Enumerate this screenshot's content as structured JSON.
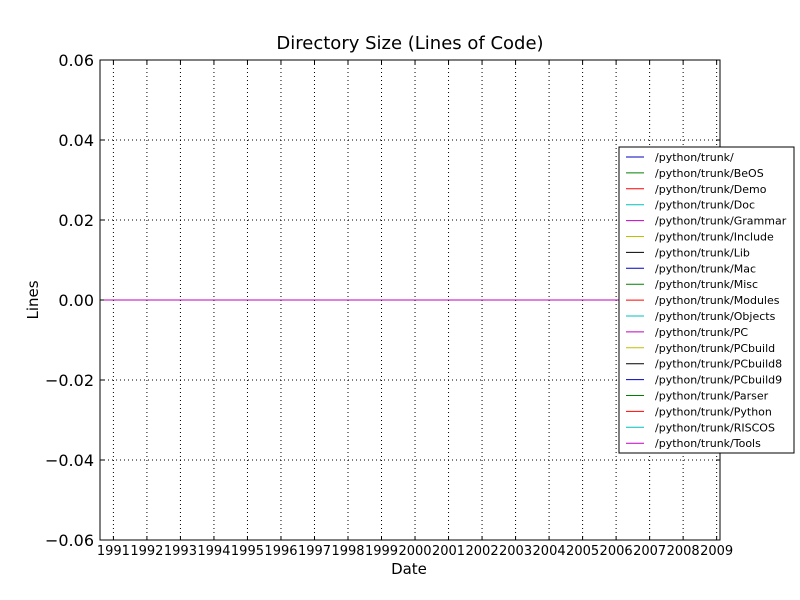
{
  "chart_data": {
    "type": "line",
    "title": "Directory Size (Lines of Code)",
    "xlabel": "Date",
    "ylabel": "Lines",
    "xlim": [
      1990.6,
      2009.1
    ],
    "ylim": [
      -0.06,
      0.06
    ],
    "x_ticks": [
      "1991",
      "1992",
      "1993",
      "1994",
      "1995",
      "1996",
      "1997",
      "1998",
      "1999",
      "2000",
      "2001",
      "2002",
      "2003",
      "2004",
      "2005",
      "2006",
      "2007",
      "2008",
      "2009"
    ],
    "y_ticks": [
      "0.06",
      "0.04",
      "0.02",
      "0.00",
      "−0.02",
      "−0.04",
      "−0.06"
    ],
    "y_tick_values": [
      0.06,
      0.04,
      0.02,
      0.0,
      -0.02,
      -0.04,
      -0.06
    ],
    "grid": true,
    "legend_position": "right",
    "x": [
      1990.6,
      2009.1
    ],
    "series": [
      {
        "name": "/python/trunk/",
        "color": "#0000bf",
        "values": [
          0,
          0
        ]
      },
      {
        "name": "/python/trunk/BeOS",
        "color": "#008000",
        "values": [
          0,
          0
        ]
      },
      {
        "name": "/python/trunk/Demo",
        "color": "#ff0000",
        "values": [
          0,
          0
        ]
      },
      {
        "name": "/python/trunk/Doc",
        "color": "#00bfbf",
        "values": [
          0,
          0
        ]
      },
      {
        "name": "/python/trunk/Grammar",
        "color": "#bf00bf",
        "values": [
          0,
          0
        ]
      },
      {
        "name": "/python/trunk/Include",
        "color": "#bfbf00",
        "values": [
          0,
          0
        ]
      },
      {
        "name": "/python/trunk/Lib",
        "color": "#000000",
        "values": [
          0,
          0
        ]
      },
      {
        "name": "/python/trunk/Mac",
        "color": "#0000bf",
        "values": [
          0,
          0
        ]
      },
      {
        "name": "/python/trunk/Misc",
        "color": "#008000",
        "values": [
          0,
          0
        ]
      },
      {
        "name": "/python/trunk/Modules",
        "color": "#ff0000",
        "values": [
          0,
          0
        ]
      },
      {
        "name": "/python/trunk/Objects",
        "color": "#00bfbf",
        "values": [
          0,
          0
        ]
      },
      {
        "name": "/python/trunk/PC",
        "color": "#bf00bf",
        "values": [
          0,
          0
        ]
      },
      {
        "name": "/python/trunk/PCbuild",
        "color": "#bfbf00",
        "values": [
          0,
          0
        ]
      },
      {
        "name": "/python/trunk/PCbuild8",
        "color": "#000000",
        "values": [
          0,
          0
        ]
      },
      {
        "name": "/python/trunk/PCbuild9",
        "color": "#0000bf",
        "values": [
          0,
          0
        ]
      },
      {
        "name": "/python/trunk/Parser",
        "color": "#008000",
        "values": [
          0,
          0
        ]
      },
      {
        "name": "/python/trunk/Python",
        "color": "#ff0000",
        "values": [
          0,
          0
        ]
      },
      {
        "name": "/python/trunk/RISCOS",
        "color": "#00bfbf",
        "values": [
          0,
          0
        ]
      },
      {
        "name": "/python/trunk/Tools",
        "color": "#bf00bf",
        "values": [
          0,
          0
        ]
      }
    ]
  }
}
